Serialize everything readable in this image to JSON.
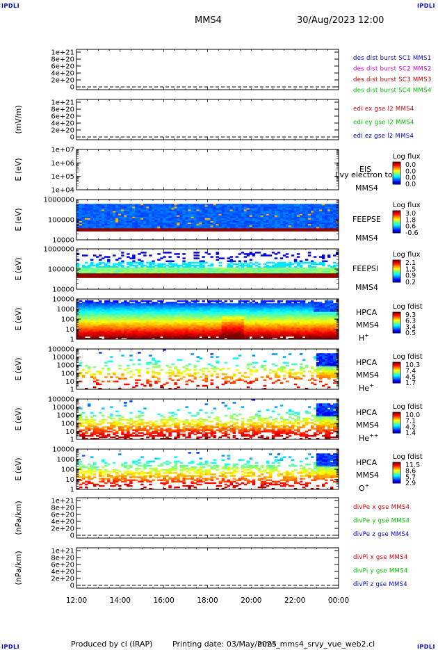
{
  "header": {
    "spacecraft": "MMS4",
    "datetime": "30/Aug/2023 12:00",
    "logo_left": "IPDLI",
    "logo_right": "IPDLI"
  },
  "footer": {
    "produced_by": "Produced by  cl (IRAP)",
    "printing_date": "Printing date: 03/May/2025",
    "script_name": "mms_mms4_srvy_vue_web2.cl",
    "logo_left": "IPDLI",
    "logo_right": "IPDLI"
  },
  "chart_data": {
    "type": "multi-panel time series / spectrogram",
    "x": {
      "ticks": [
        "12:00",
        "14:00",
        "16:00",
        "18:00",
        "20:00",
        "22:00",
        "00:00"
      ],
      "range_hours": [
        12,
        24
      ]
    },
    "panels": [
      {
        "id": "dist",
        "type": "line",
        "ylabel": "",
        "yticks": [
          "1e+21",
          "8e+20",
          "6e+20",
          "4e+20",
          "2e+20",
          "0"
        ],
        "dashed_zero": true,
        "legend": [
          {
            "label": "des dist burst SC1 MMS1",
            "color": "#0000cc"
          },
          {
            "label": "des dist burst SC2 MMS2",
            "color": "#cc00cc"
          },
          {
            "label": "des dist burst SC3 MMS3",
            "color": "#cc0000"
          },
          {
            "label": "des dist burst SC4 MMS4",
            "color": "#00bb00"
          }
        ]
      },
      {
        "id": "edi",
        "type": "line",
        "ylabel": "(mV/m)",
        "yticks": [
          "1e+21",
          "8e+20",
          "6e+20",
          "4e+20",
          "2e+20",
          "0"
        ],
        "dashed_zero": true,
        "legend": [
          {
            "label": "edi ex gse l2 MMS4",
            "color": "#cc0000"
          },
          {
            "label": "edi ey gse l2 MMS4",
            "color": "#00bb00"
          },
          {
            "label": "edi ez gse l2 MMS4",
            "color": "#0000cc"
          }
        ]
      },
      {
        "id": "eis",
        "type": "spectrogram",
        "ylabel": "E (eV)",
        "yticks": [
          "1e+07",
          "1e+06",
          "1e+05",
          "1e+04"
        ],
        "scale": "log",
        "instrument": "EIS",
        "overlay_text": "l  vy electron to",
        "spacecraft": "MMS4",
        "colorbar_title": "Log flux",
        "colorbar_ticks": [
          "0.0",
          "0.0",
          "0.0",
          "0.0"
        ],
        "empty": true
      },
      {
        "id": "feepse",
        "type": "spectrogram",
        "ylabel": "E (eV)",
        "yticks": [
          "1000000",
          "100000",
          "10000"
        ],
        "scale": "log",
        "instrument": "FEEPSE",
        "spacecraft": "MMS4",
        "colorbar_title": "Log flux",
        "colorbar_ticks": [
          "3.0",
          "1.8",
          "0.6",
          "-0.6"
        ]
      },
      {
        "id": "feepsi",
        "type": "spectrogram",
        "ylabel": "E (eV)",
        "yticks": [
          "1000000",
          "100000",
          "10000"
        ],
        "scale": "log",
        "instrument": "FEEPSI",
        "spacecraft": "MMS4",
        "colorbar_title": "Log flux",
        "colorbar_ticks": [
          "2.1",
          "1.5",
          "0.9",
          "0.2"
        ]
      },
      {
        "id": "hpca_h",
        "type": "spectrogram",
        "ylabel": "E (eV)",
        "yticks": [
          "10000",
          "1000",
          "100",
          "10",
          "1"
        ],
        "scale": "log",
        "instrument": "HPCA",
        "spacecraft": "MMS4",
        "species": "H",
        "species_charge": "+",
        "colorbar_title": "Log fdist",
        "colorbar_ticks": [
          "9.3",
          "6.3",
          "3.4",
          "0.5"
        ]
      },
      {
        "id": "hpca_he1",
        "type": "spectrogram",
        "ylabel": "E (eV)",
        "yticks": [
          "100000",
          "10000",
          "1000",
          "100",
          "10",
          "1"
        ],
        "scale": "log",
        "instrument": "HPCA",
        "spacecraft": "MMS4",
        "species": "He",
        "species_charge": "+",
        "colorbar_title": "Log fdist",
        "colorbar_ticks": [
          "10.3",
          "7.4",
          "4.5",
          "1.7"
        ]
      },
      {
        "id": "hpca_he2",
        "type": "spectrogram",
        "ylabel": "E (eV)",
        "yticks": [
          "100000",
          "10000",
          "1000",
          "100",
          "10",
          "1"
        ],
        "scale": "log",
        "instrument": "HPCA",
        "spacecraft": "MMS4",
        "species": "He",
        "species_charge": "++",
        "colorbar_title": "Log fdist",
        "colorbar_ticks": [
          "10.0",
          "7.1",
          "4.2",
          "1.4"
        ]
      },
      {
        "id": "hpca_o",
        "type": "spectrogram",
        "ylabel": "E (eV)",
        "yticks": [
          "10000",
          "1000",
          "100",
          "10",
          "1"
        ],
        "scale": "log",
        "instrument": "HPCA",
        "spacecraft": "MMS4",
        "species": "O",
        "species_charge": "+",
        "colorbar_title": "Log fdist",
        "colorbar_ticks": [
          "11.5",
          "8.6",
          "5.7",
          "2.9"
        ]
      },
      {
        "id": "divpe",
        "type": "line",
        "ylabel": "(nPa/km)",
        "yticks": [
          "1e+21",
          "8e+20",
          "6e+20",
          "4e+20",
          "2e+20",
          "0"
        ],
        "dashed_zero": true,
        "legend": [
          {
            "label": "divPe x gse MMS4",
            "color": "#cc0000"
          },
          {
            "label": "divPe y gse MMS4",
            "color": "#00bb00"
          },
          {
            "label": "divPe z gse MMS4",
            "color": "#0000cc"
          }
        ]
      },
      {
        "id": "divpi",
        "type": "line",
        "ylabel": "(nPa/km)",
        "yticks": [
          "1e+21",
          "8e+20",
          "6e+20",
          "4e+20",
          "2e+20",
          "0"
        ],
        "dashed_zero": true,
        "legend": [
          {
            "label": "divPi x gse MMS4",
            "color": "#cc0000"
          },
          {
            "label": "divPi y gse MMS4",
            "color": "#00bb00"
          },
          {
            "label": "divPi z gse MMS4",
            "color": "#0000cc"
          }
        ]
      }
    ]
  }
}
